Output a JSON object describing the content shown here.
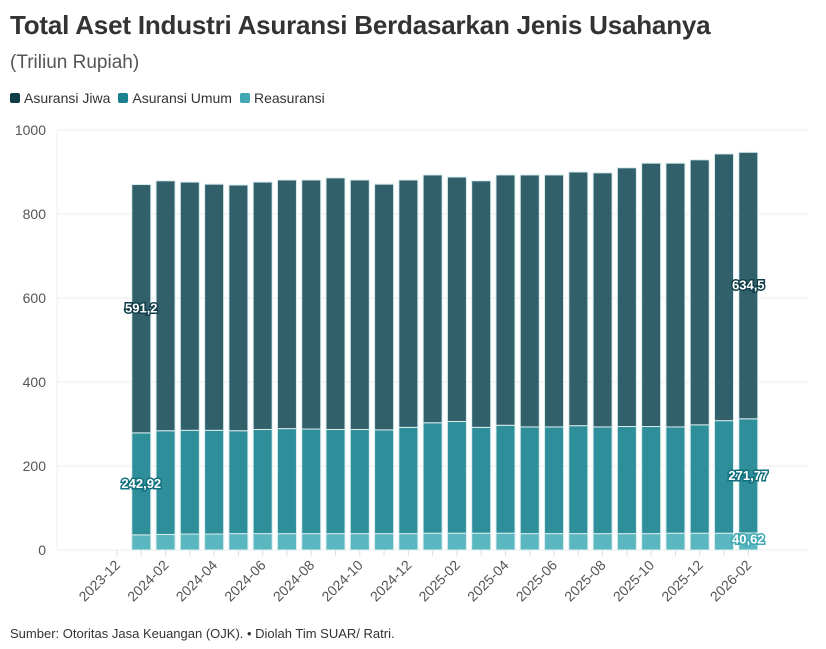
{
  "chart_data": {
    "type": "bar",
    "stacked": true,
    "title": "Total Aset Industri Asuransi Berdasarkan Jenis Usahanya",
    "subtitle": "(Triliun Rupiah)",
    "ylim": [
      0,
      1000
    ],
    "yticks": [
      "0",
      "200",
      "400",
      "600",
      "800",
      "1000"
    ],
    "grid": true,
    "legend_position": "top-left",
    "xticks": [
      "2023-12",
      "2024-02",
      "2024-04",
      "2024-06",
      "2024-08",
      "2024-10",
      "2024-12",
      "2025-02",
      "2025-04",
      "2025-06",
      "2025-08",
      "2025-10",
      "2025-12",
      "2026-02"
    ],
    "categories": [
      "2024-01",
      "2024-02",
      "2024-03",
      "2024-04",
      "2024-05",
      "2024-06",
      "2024-07",
      "2024-08",
      "2024-09",
      "2024-10",
      "2024-11",
      "2024-12",
      "2025-01",
      "2025-02",
      "2025-03",
      "2025-04",
      "2025-05",
      "2025-06",
      "2025-07",
      "2025-08",
      "2025-09",
      "2025-10",
      "2025-11",
      "2025-12",
      "2026-01",
      "2026-02"
    ],
    "series": [
      {
        "name": "Reasuransi",
        "color": "#5bb7bf",
        "values": [
          36,
          37,
          38,
          38,
          39,
          39,
          39,
          39,
          39,
          39,
          39,
          39,
          40,
          40,
          40,
          40,
          39,
          39,
          39,
          39,
          39,
          39,
          40,
          40,
          40,
          40.62
        ]
      },
      {
        "name": "Asuransi Umum",
        "color": "#2e8f9b",
        "values": [
          242.92,
          247,
          247,
          247,
          245,
          248,
          250,
          249,
          248,
          248,
          247,
          253,
          263,
          266,
          252,
          257,
          254,
          254,
          257,
          254,
          255,
          255,
          253,
          258,
          268,
          271.77
        ]
      },
      {
        "name": "Asuransi Jiwa",
        "color": "#31606a",
        "values": [
          591.2,
          595,
          591,
          586,
          585,
          589,
          592,
          593,
          599,
          594,
          585,
          589,
          590,
          582,
          587,
          596,
          600,
          600,
          604,
          605,
          616,
          627,
          628,
          631,
          635,
          634.5
        ]
      }
    ],
    "annotations": [
      {
        "series": "Asuransi Jiwa",
        "category": "2024-01",
        "text": "591,2"
      },
      {
        "series": "Asuransi Umum",
        "category": "2024-01",
        "text": "242,92"
      },
      {
        "series": "Asuransi Jiwa",
        "category": "2026-02",
        "text": "634,5"
      },
      {
        "series": "Asuransi Umum",
        "category": "2026-02",
        "text": "271,77"
      },
      {
        "series": "Reasuransi",
        "category": "2026-02",
        "text": "40,62"
      }
    ]
  },
  "legend": [
    {
      "label": "Asuransi Jiwa",
      "color": "#0f3d48"
    },
    {
      "label": "Asuransi Umum",
      "color": "#1a7f8e"
    },
    {
      "label": "Reasuransi",
      "color": "#3fa8b3"
    }
  ],
  "source": "Sumber: Otoritas Jasa Keuangan (OJK). • Diolah Tim SUAR/ Ratri."
}
